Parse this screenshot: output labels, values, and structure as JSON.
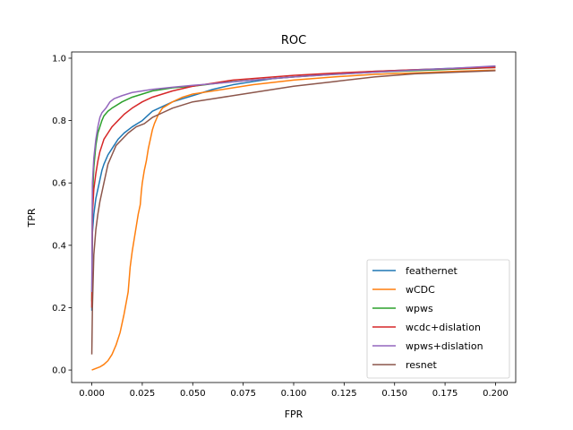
{
  "chart_data": {
    "type": "line",
    "title": "ROC",
    "xlabel": "FPR",
    "ylabel": "TPR",
    "xlim": [
      -0.01,
      0.21
    ],
    "ylim": [
      -0.04,
      1.02
    ],
    "xticks": [
      0.0,
      0.025,
      0.05,
      0.075,
      0.1,
      0.125,
      0.15,
      0.175,
      0.2
    ],
    "xtick_labels": [
      "0.000",
      "0.025",
      "0.050",
      "0.075",
      "0.100",
      "0.125",
      "0.150",
      "0.175",
      "0.200"
    ],
    "yticks": [
      0.0,
      0.2,
      0.4,
      0.6,
      0.8,
      1.0
    ],
    "ytick_labels": [
      "0.0",
      "0.2",
      "0.4",
      "0.6",
      "0.8",
      "1.0"
    ],
    "grid": false,
    "legend_position": "bottom-right",
    "series": [
      {
        "name": "feathernet",
        "color": "#1f77b4",
        "points": [
          [
            0.0,
            0.19
          ],
          [
            0.0003,
            0.44
          ],
          [
            0.001,
            0.5
          ],
          [
            0.002,
            0.55
          ],
          [
            0.003,
            0.58
          ],
          [
            0.004,
            0.61
          ],
          [
            0.005,
            0.64
          ],
          [
            0.006,
            0.66
          ],
          [
            0.008,
            0.69
          ],
          [
            0.01,
            0.71
          ],
          [
            0.013,
            0.74
          ],
          [
            0.016,
            0.76
          ],
          [
            0.02,
            0.78
          ],
          [
            0.025,
            0.8
          ],
          [
            0.03,
            0.83
          ],
          [
            0.035,
            0.845
          ],
          [
            0.04,
            0.86
          ],
          [
            0.045,
            0.87
          ],
          [
            0.05,
            0.88
          ],
          [
            0.06,
            0.9
          ],
          [
            0.07,
            0.915
          ],
          [
            0.08,
            0.925
          ],
          [
            0.09,
            0.935
          ],
          [
            0.1,
            0.94
          ],
          [
            0.12,
            0.95
          ],
          [
            0.14,
            0.958
          ],
          [
            0.16,
            0.963
          ],
          [
            0.18,
            0.968
          ],
          [
            0.2,
            0.973
          ]
        ]
      },
      {
        "name": "wCDC",
        "color": "#ff7f0e",
        "points": [
          [
            0.0,
            0.0
          ],
          [
            0.002,
            0.005
          ],
          [
            0.004,
            0.01
          ],
          [
            0.006,
            0.018
          ],
          [
            0.008,
            0.03
          ],
          [
            0.01,
            0.05
          ],
          [
            0.012,
            0.08
          ],
          [
            0.014,
            0.12
          ],
          [
            0.016,
            0.18
          ],
          [
            0.018,
            0.25
          ],
          [
            0.019,
            0.33
          ],
          [
            0.02,
            0.38
          ],
          [
            0.021,
            0.42
          ],
          [
            0.022,
            0.46
          ],
          [
            0.023,
            0.5
          ],
          [
            0.024,
            0.53
          ],
          [
            0.0245,
            0.57
          ],
          [
            0.025,
            0.6
          ],
          [
            0.026,
            0.64
          ],
          [
            0.027,
            0.67
          ],
          [
            0.028,
            0.71
          ],
          [
            0.029,
            0.74
          ],
          [
            0.03,
            0.77
          ],
          [
            0.031,
            0.79
          ],
          [
            0.033,
            0.82
          ],
          [
            0.035,
            0.84
          ],
          [
            0.04,
            0.86
          ],
          [
            0.045,
            0.875
          ],
          [
            0.05,
            0.885
          ],
          [
            0.06,
            0.895
          ],
          [
            0.07,
            0.905
          ],
          [
            0.08,
            0.915
          ],
          [
            0.1,
            0.93
          ],
          [
            0.12,
            0.94
          ],
          [
            0.14,
            0.948
          ],
          [
            0.16,
            0.953
          ],
          [
            0.18,
            0.958
          ],
          [
            0.2,
            0.962
          ]
        ]
      },
      {
        "name": "wpws",
        "color": "#2ca02c",
        "points": [
          [
            0.0,
            0.22
          ],
          [
            0.0003,
            0.55
          ],
          [
            0.001,
            0.65
          ],
          [
            0.002,
            0.72
          ],
          [
            0.003,
            0.76
          ],
          [
            0.004,
            0.78
          ],
          [
            0.005,
            0.8
          ],
          [
            0.006,
            0.815
          ],
          [
            0.008,
            0.83
          ],
          [
            0.01,
            0.84
          ],
          [
            0.015,
            0.86
          ],
          [
            0.02,
            0.875
          ],
          [
            0.025,
            0.885
          ],
          [
            0.03,
            0.895
          ],
          [
            0.04,
            0.905
          ],
          [
            0.05,
            0.91
          ],
          [
            0.06,
            0.918
          ],
          [
            0.07,
            0.925
          ],
          [
            0.08,
            0.93
          ],
          [
            0.1,
            0.94
          ],
          [
            0.12,
            0.948
          ],
          [
            0.14,
            0.955
          ],
          [
            0.16,
            0.96
          ],
          [
            0.18,
            0.965
          ],
          [
            0.2,
            0.97
          ]
        ]
      },
      {
        "name": "wcdc+dislation",
        "color": "#d62728",
        "points": [
          [
            0.0,
            0.2
          ],
          [
            0.0003,
            0.5
          ],
          [
            0.001,
            0.58
          ],
          [
            0.002,
            0.63
          ],
          [
            0.003,
            0.67
          ],
          [
            0.004,
            0.7
          ],
          [
            0.005,
            0.72
          ],
          [
            0.006,
            0.74
          ],
          [
            0.008,
            0.76
          ],
          [
            0.01,
            0.78
          ],
          [
            0.013,
            0.8
          ],
          [
            0.016,
            0.82
          ],
          [
            0.02,
            0.84
          ],
          [
            0.025,
            0.86
          ],
          [
            0.03,
            0.875
          ],
          [
            0.035,
            0.885
          ],
          [
            0.04,
            0.895
          ],
          [
            0.05,
            0.91
          ],
          [
            0.06,
            0.92
          ],
          [
            0.07,
            0.93
          ],
          [
            0.08,
            0.935
          ],
          [
            0.1,
            0.945
          ],
          [
            0.12,
            0.952
          ],
          [
            0.14,
            0.958
          ],
          [
            0.16,
            0.963
          ],
          [
            0.18,
            0.967
          ],
          [
            0.2,
            0.97
          ]
        ]
      },
      {
        "name": "wpws+dislation",
        "color": "#9467bd",
        "points": [
          [
            0.0,
            0.25
          ],
          [
            0.0003,
            0.6
          ],
          [
            0.001,
            0.68
          ],
          [
            0.002,
            0.74
          ],
          [
            0.003,
            0.78
          ],
          [
            0.004,
            0.81
          ],
          [
            0.005,
            0.825
          ],
          [
            0.007,
            0.84
          ],
          [
            0.009,
            0.86
          ],
          [
            0.011,
            0.87
          ],
          [
            0.015,
            0.88
          ],
          [
            0.02,
            0.89
          ],
          [
            0.025,
            0.895
          ],
          [
            0.03,
            0.9
          ],
          [
            0.04,
            0.907
          ],
          [
            0.05,
            0.913
          ],
          [
            0.06,
            0.918
          ],
          [
            0.07,
            0.924
          ],
          [
            0.08,
            0.93
          ],
          [
            0.1,
            0.94
          ],
          [
            0.12,
            0.948
          ],
          [
            0.14,
            0.955
          ],
          [
            0.16,
            0.962
          ],
          [
            0.18,
            0.968
          ],
          [
            0.2,
            0.975
          ]
        ]
      },
      {
        "name": "resnet",
        "color": "#8c564b",
        "points": [
          [
            0.0,
            0.05
          ],
          [
            0.0003,
            0.2
          ],
          [
            0.001,
            0.37
          ],
          [
            0.002,
            0.45
          ],
          [
            0.003,
            0.5
          ],
          [
            0.004,
            0.54
          ],
          [
            0.005,
            0.57
          ],
          [
            0.006,
            0.6
          ],
          [
            0.007,
            0.63
          ],
          [
            0.008,
            0.66
          ],
          [
            0.01,
            0.69
          ],
          [
            0.012,
            0.72
          ],
          [
            0.015,
            0.74
          ],
          [
            0.018,
            0.76
          ],
          [
            0.022,
            0.78
          ],
          [
            0.026,
            0.79
          ],
          [
            0.03,
            0.81
          ],
          [
            0.035,
            0.825
          ],
          [
            0.04,
            0.84
          ],
          [
            0.045,
            0.85
          ],
          [
            0.05,
            0.86
          ],
          [
            0.06,
            0.87
          ],
          [
            0.07,
            0.88
          ],
          [
            0.08,
            0.89
          ],
          [
            0.1,
            0.91
          ],
          [
            0.12,
            0.925
          ],
          [
            0.14,
            0.94
          ],
          [
            0.16,
            0.95
          ],
          [
            0.18,
            0.955
          ],
          [
            0.2,
            0.96
          ]
        ]
      }
    ]
  }
}
